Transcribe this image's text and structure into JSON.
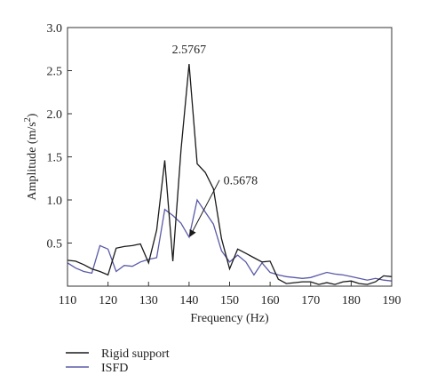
{
  "chart_data": {
    "type": "line",
    "xlabel": "Frequency (Hz)",
    "ylabel_main": "Amplitude (m/s",
    "ylabel_sup": "2",
    "ylabel_close": ")",
    "xlim": [
      110,
      190
    ],
    "ylim": [
      0,
      3.0
    ],
    "xticks": [
      110,
      120,
      130,
      140,
      150,
      160,
      170,
      180,
      190
    ],
    "yticks": [
      0.5,
      1.0,
      1.5,
      2.0,
      2.5,
      3.0
    ],
    "ytick_labels": [
      "0.5",
      "1.0",
      "1.5",
      "2.0",
      "2.5",
      "3.0"
    ],
    "legend_position": "bottom-left, below plot",
    "grid": false,
    "series": [
      {
        "name": "Rigid support",
        "color": "#1a1a1a",
        "x": [
          110,
          112,
          114,
          116,
          118,
          120,
          122,
          124,
          126,
          128,
          130,
          132,
          134,
          136,
          138,
          140,
          142,
          144,
          146,
          148,
          150,
          152,
          154,
          156,
          158,
          160,
          162,
          164,
          166,
          168,
          170,
          172,
          174,
          176,
          178,
          180,
          182,
          184,
          186,
          188,
          190
        ],
        "y": [
          0.3,
          0.29,
          0.25,
          0.2,
          0.17,
          0.13,
          0.44,
          0.46,
          0.47,
          0.49,
          0.27,
          0.65,
          1.46,
          0.29,
          1.58,
          2.5767,
          1.42,
          1.32,
          1.13,
          0.55,
          0.2,
          0.43,
          0.38,
          0.33,
          0.28,
          0.29,
          0.08,
          0.03,
          0.04,
          0.05,
          0.05,
          0.02,
          0.04,
          0.02,
          0.05,
          0.06,
          0.03,
          0.02,
          0.05,
          0.12,
          0.11
        ]
      },
      {
        "name": "ISFD",
        "color": "#5a5aa8",
        "x": [
          110,
          112,
          114,
          116,
          118,
          120,
          122,
          124,
          126,
          128,
          130,
          132,
          134,
          136,
          138,
          140,
          142,
          144,
          146,
          148,
          150,
          152,
          154,
          156,
          158,
          160,
          162,
          164,
          166,
          168,
          170,
          172,
          174,
          176,
          178,
          180,
          182,
          184,
          186,
          188,
          190
        ],
        "y": [
          0.27,
          0.21,
          0.17,
          0.15,
          0.47,
          0.43,
          0.17,
          0.24,
          0.23,
          0.28,
          0.31,
          0.33,
          0.89,
          0.82,
          0.73,
          0.5678,
          1.0,
          0.86,
          0.72,
          0.41,
          0.28,
          0.36,
          0.28,
          0.13,
          0.27,
          0.16,
          0.13,
          0.11,
          0.1,
          0.09,
          0.1,
          0.13,
          0.16,
          0.14,
          0.13,
          0.11,
          0.09,
          0.07,
          0.09,
          0.07,
          0.06
        ]
      }
    ],
    "annotations": [
      {
        "text": "2.5767",
        "x": 140,
        "y": 2.5767,
        "arrow": false
      },
      {
        "text": "0.5678",
        "x": 140,
        "y": 0.5678,
        "arrow": true
      }
    ]
  }
}
